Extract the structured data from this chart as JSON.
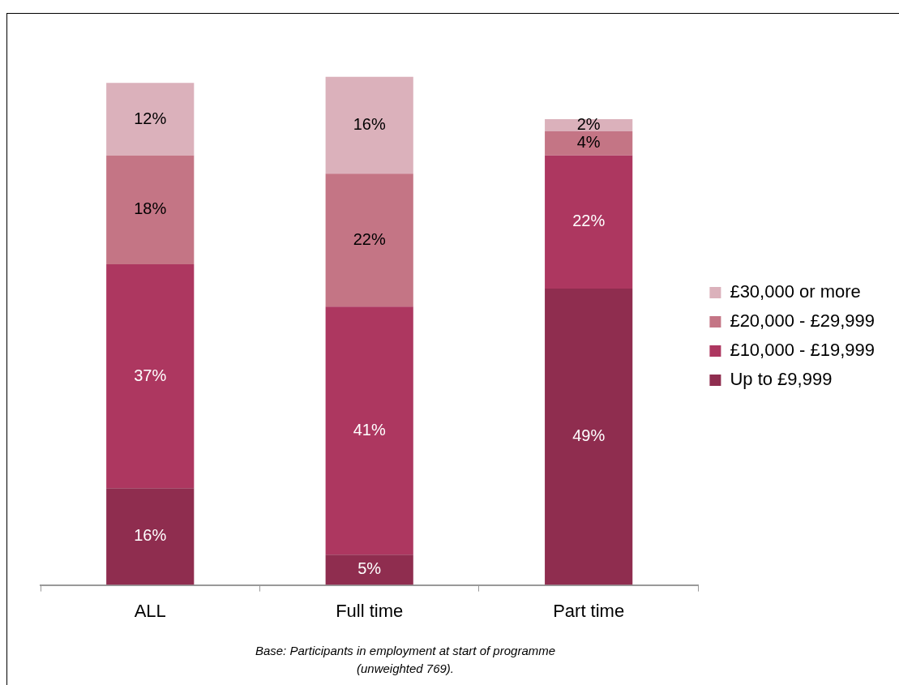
{
  "chart_data": {
    "type": "bar",
    "stacked": true,
    "categories": [
      "ALL",
      "Full time",
      "Part time"
    ],
    "series": [
      {
        "name": "Up to £9,999",
        "color": "#8f2d4f",
        "values": [
          16,
          5,
          49
        ],
        "value_labels": [
          "16%",
          "5%",
          "49%"
        ]
      },
      {
        "name": "£10,000 - £19,999",
        "color": "#ad3760",
        "values": [
          37,
          41,
          22
        ],
        "value_labels": [
          "37%",
          "41%",
          "22%"
        ]
      },
      {
        "name": "£20,000 - £29,999",
        "color": "#c47585",
        "values": [
          18,
          22,
          4
        ],
        "value_labels": [
          "18%",
          "22%",
          "4%"
        ]
      },
      {
        "name": "£30,000 or more",
        "color": "#dbb1bb",
        "values": [
          12,
          16,
          2
        ],
        "value_labels": [
          "12%",
          "16%",
          "2%"
        ]
      }
    ],
    "legend": "right",
    "grid": false,
    "annotations": [
      "Base: Participants in employment at start of programme (unweighted 769)."
    ]
  }
}
